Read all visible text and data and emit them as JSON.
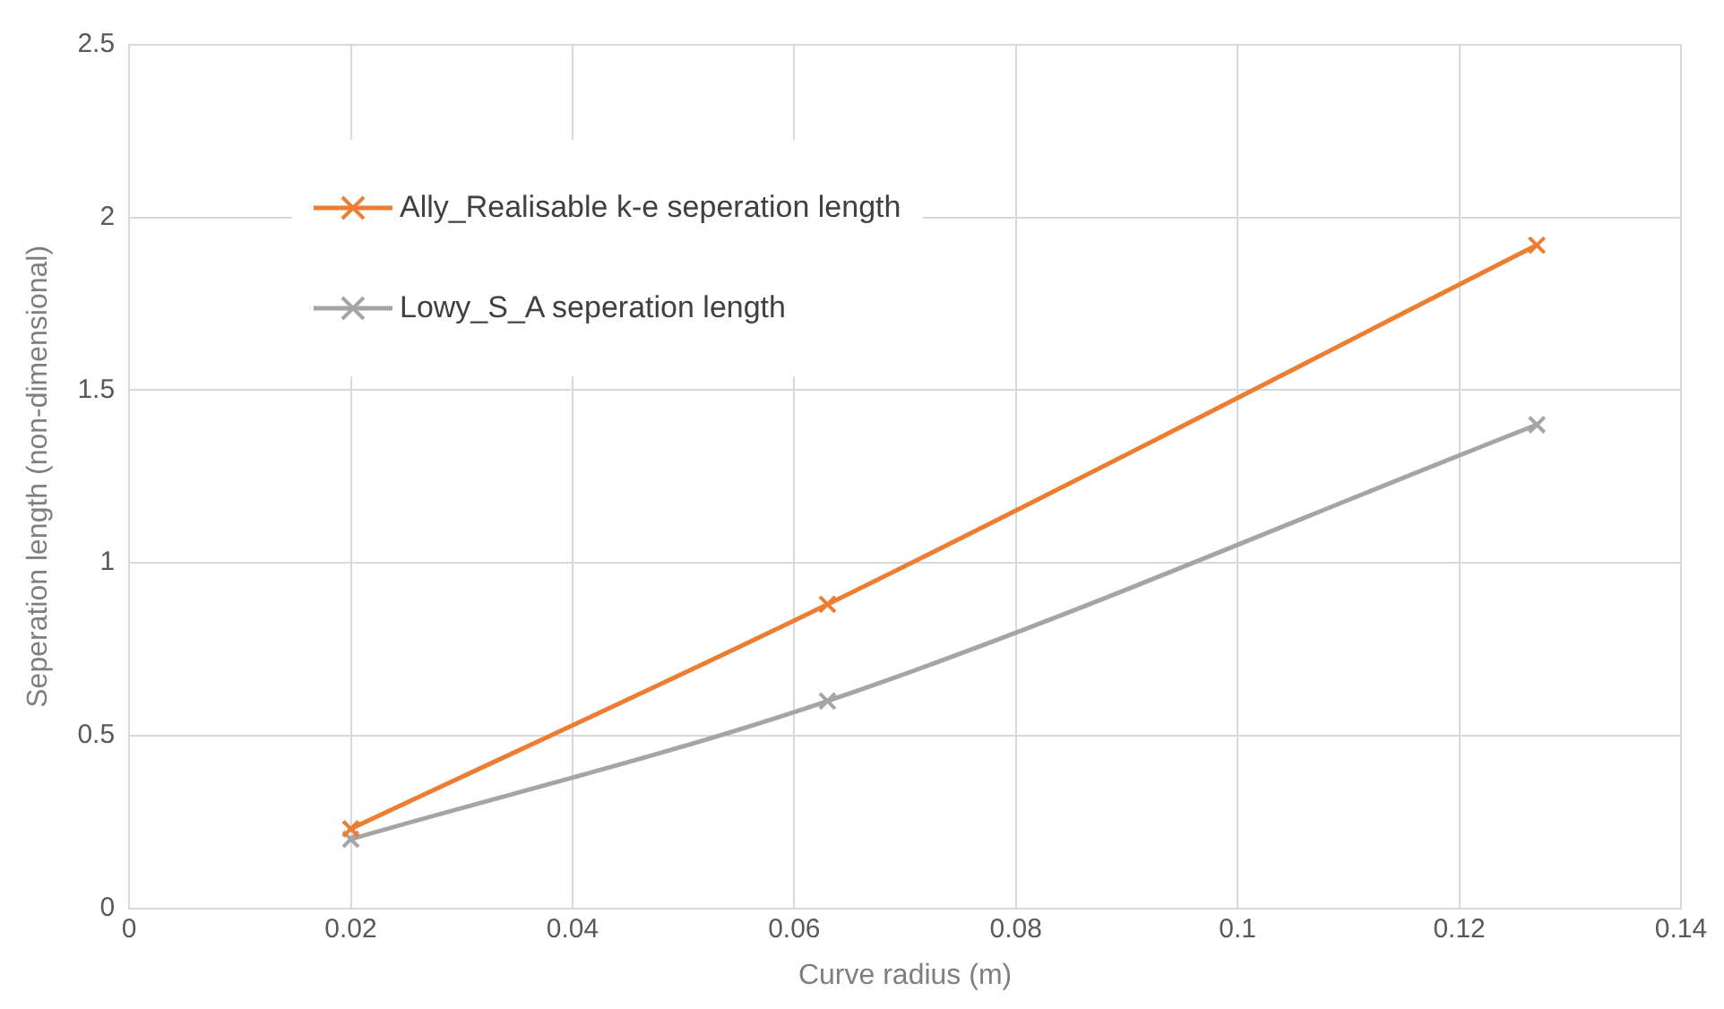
{
  "chart_data": {
    "type": "line",
    "xlabel": "Curve radius (m)",
    "ylabel": "Seperation length (non-dimensional)",
    "x": [
      0.02,
      0.063,
      0.127
    ],
    "series": [
      {
        "name": "Ally_Realisable k-e seperation length",
        "color": "#ed7d31",
        "values": [
          0.23,
          0.88,
          1.92
        ]
      },
      {
        "name": "Lowy_S_A seperation length",
        "color": "#a5a5a5",
        "values": [
          0.2,
          0.6,
          1.4
        ]
      }
    ],
    "xlim": [
      0,
      0.14
    ],
    "xticks": [
      0,
      0.02,
      0.04,
      0.06,
      0.08,
      0.1,
      0.12,
      0.14
    ],
    "ylim": [
      0,
      2.5
    ],
    "yticks": [
      0,
      0.5,
      1,
      1.5,
      2,
      2.5
    ],
    "grid": true,
    "legend": "top left",
    "marker": "cross",
    "line_style": "solid"
  }
}
